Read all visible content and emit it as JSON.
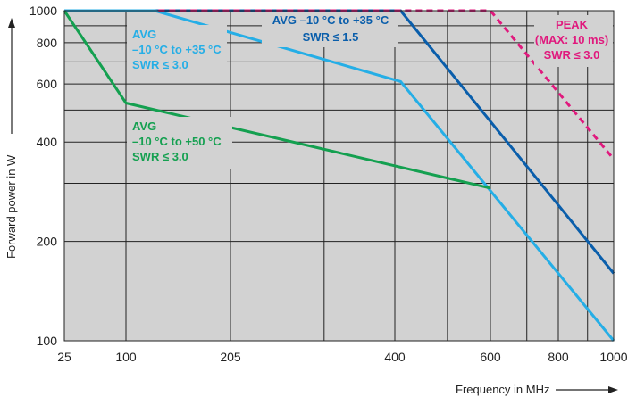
{
  "chart_data": {
    "type": "line",
    "title": "",
    "xlabel": "Frequency in MHz",
    "ylabel": "Forward power in W",
    "x_scale": "log",
    "y_scale": "log",
    "xlim": [
      25,
      1000
    ],
    "ylim": [
      100,
      1000
    ],
    "x_ticks": [
      {
        "value": 25,
        "label": "25"
      },
      {
        "value": 100,
        "label": "100"
      },
      {
        "value": 205,
        "label": "205"
      },
      {
        "value": 400,
        "label": "400"
      },
      {
        "value": 600,
        "label": "600"
      },
      {
        "value": 800,
        "label": "800"
      },
      {
        "value": 1000,
        "label": "1000"
      }
    ],
    "x_grid": [
      100,
      205,
      300,
      400,
      500,
      600,
      700,
      800,
      900
    ],
    "y_ticks": [
      {
        "value": 100,
        "label": "100"
      },
      {
        "value": 200,
        "label": "200"
      },
      {
        "value": 400,
        "label": "400"
      },
      {
        "value": 600,
        "label": "600"
      },
      {
        "value": 800,
        "label": "800"
      },
      {
        "value": 1000,
        "label": "1000"
      }
    ],
    "y_grid": [
      200,
      300,
      400,
      500,
      600,
      700,
      800,
      900
    ],
    "grid": true,
    "background": "#d2d2d2",
    "series": [
      {
        "color": "#0a5eab",
        "dash": false,
        "points": [
          [
            25,
            1000
          ],
          [
            410,
            1000
          ],
          [
            1000,
            160
          ]
        ]
      },
      {
        "color": "#25aee6",
        "dash": false,
        "points": [
          [
            25,
            1000
          ],
          [
            122,
            1000
          ],
          [
            410,
            610
          ],
          [
            1000,
            100
          ]
        ]
      },
      {
        "color": "#14a050",
        "dash": false,
        "points": [
          [
            25,
            1000
          ],
          [
            100,
            525
          ],
          [
            600,
            290
          ]
        ]
      },
      {
        "color": "#e0197d",
        "dash": true,
        "points": [
          [
            125,
            1000
          ],
          [
            600,
            1000
          ],
          [
            1000,
            355
          ]
        ]
      }
    ],
    "annotations": [
      {
        "color": "#25aee6",
        "lines": [
          "AVG",
          "–10 °C to +35 °C",
          "SWR ≤ 3.0"
        ]
      },
      {
        "color": "#14a050",
        "lines": [
          "AVG",
          "–10 °C to  +50 °C",
          "SWR ≤ 3.0"
        ]
      },
      {
        "color": "#0a5eab",
        "lines": [
          "AVG  –10 °C to +35 °C",
          "SWR ≤ 1.5"
        ]
      },
      {
        "color": "#e0197d",
        "lines": [
          "PEAK",
          "(MAX: 10 ms)",
          "SWR ≤ 3.0"
        ]
      }
    ]
  }
}
